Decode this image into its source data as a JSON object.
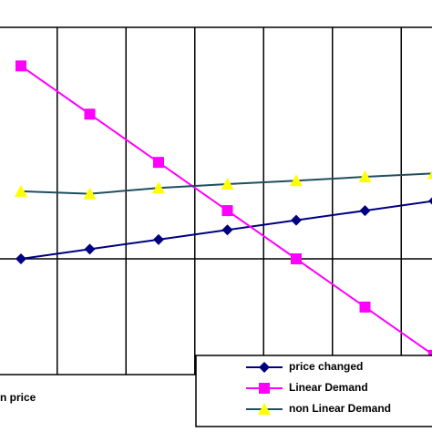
{
  "chart_data": {
    "type": "line",
    "x_label": "n price",
    "categories": [
      null,
      null,
      null,
      null,
      null,
      null,
      null
    ],
    "series": [
      {
        "name": "price changed",
        "color": "#000080",
        "marker": "diamond",
        "values": [
          0,
          0.2,
          0.4,
          0.6,
          0.8,
          1.0,
          1.2
        ]
      },
      {
        "name": "Linear Demand",
        "color": "#ff00ff",
        "marker": "square",
        "values": [
          4,
          3,
          2,
          1,
          0,
          -1,
          -2
        ]
      },
      {
        "name": "non Linear Demand",
        "color": "#1f4e5f",
        "marker_color": "#ffff00",
        "marker": "triangle",
        "values": [
          1.4,
          1.35,
          1.47,
          1.55,
          1.62,
          1.7,
          1.77
        ]
      }
    ],
    "ylim": [
      -2.4,
      4.8
    ],
    "legend": "lower right"
  }
}
